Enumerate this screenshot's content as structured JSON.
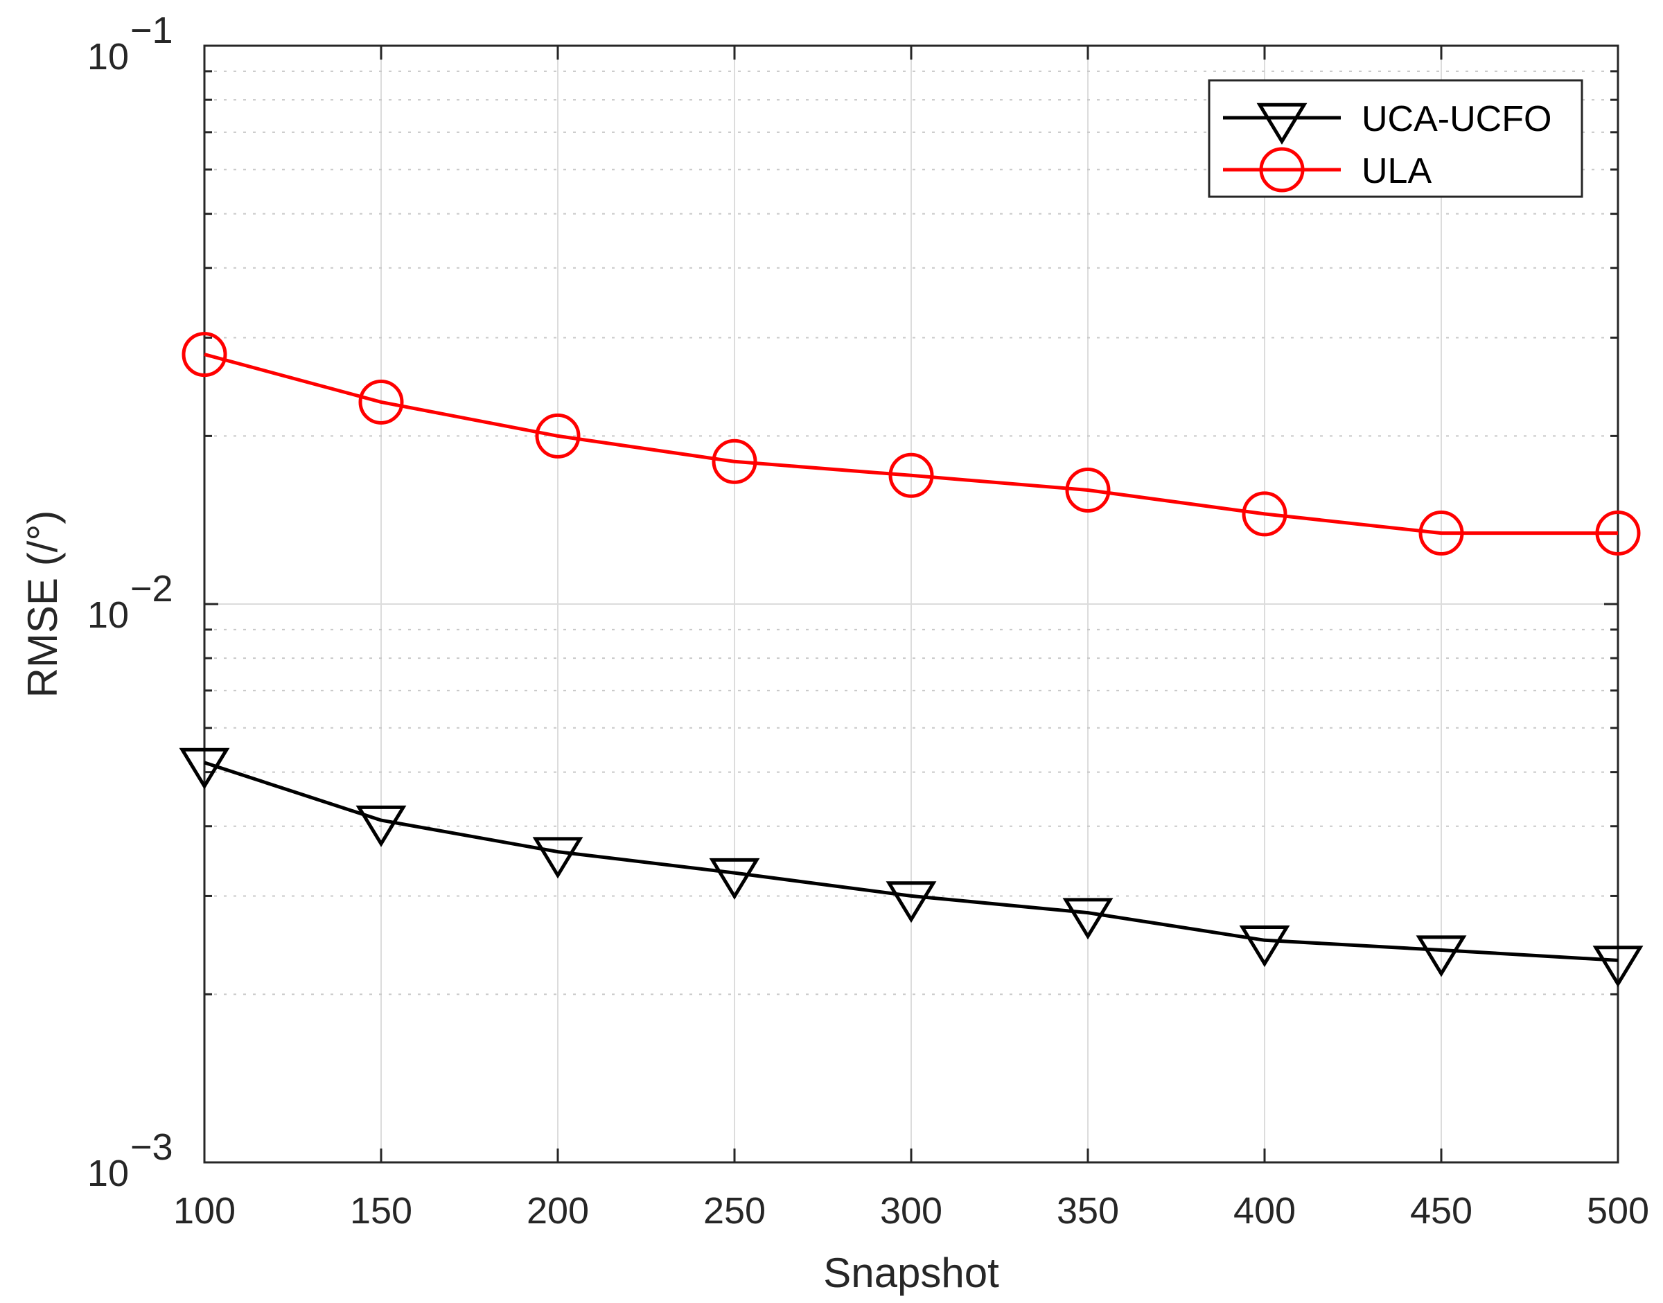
{
  "chart_data": {
    "type": "line",
    "title": "",
    "xlabel": "Snapshot",
    "ylabel": "RMSE (/°)",
    "x": [
      100,
      150,
      200,
      250,
      300,
      350,
      400,
      450,
      500
    ],
    "xlim": [
      100,
      500
    ],
    "ylim": [
      0.001,
      0.1
    ],
    "yscale": "log",
    "grid": true,
    "legend_position": "top-right",
    "x_ticks": [
      "100",
      "150",
      "200",
      "250",
      "300",
      "350",
      "400",
      "450",
      "500"
    ],
    "y_ticks": [
      {
        "value": 0.1,
        "base": "10",
        "exp": "−1"
      },
      {
        "value": 0.01,
        "base": "10",
        "exp": "−2"
      },
      {
        "value": 0.001,
        "base": "10",
        "exp": "−3"
      }
    ],
    "series": [
      {
        "name": "UCA-UCFO",
        "color": "#000000",
        "marker": "down-triangle",
        "values": [
          0.0052,
          0.0041,
          0.0036,
          0.0033,
          0.003,
          0.0028,
          0.0025,
          0.0024,
          0.0023
        ]
      },
      {
        "name": "ULA",
        "color": "#ff0000",
        "marker": "circle",
        "values": [
          0.028,
          0.023,
          0.02,
          0.018,
          0.017,
          0.016,
          0.0145,
          0.0134,
          0.0134
        ]
      }
    ]
  }
}
